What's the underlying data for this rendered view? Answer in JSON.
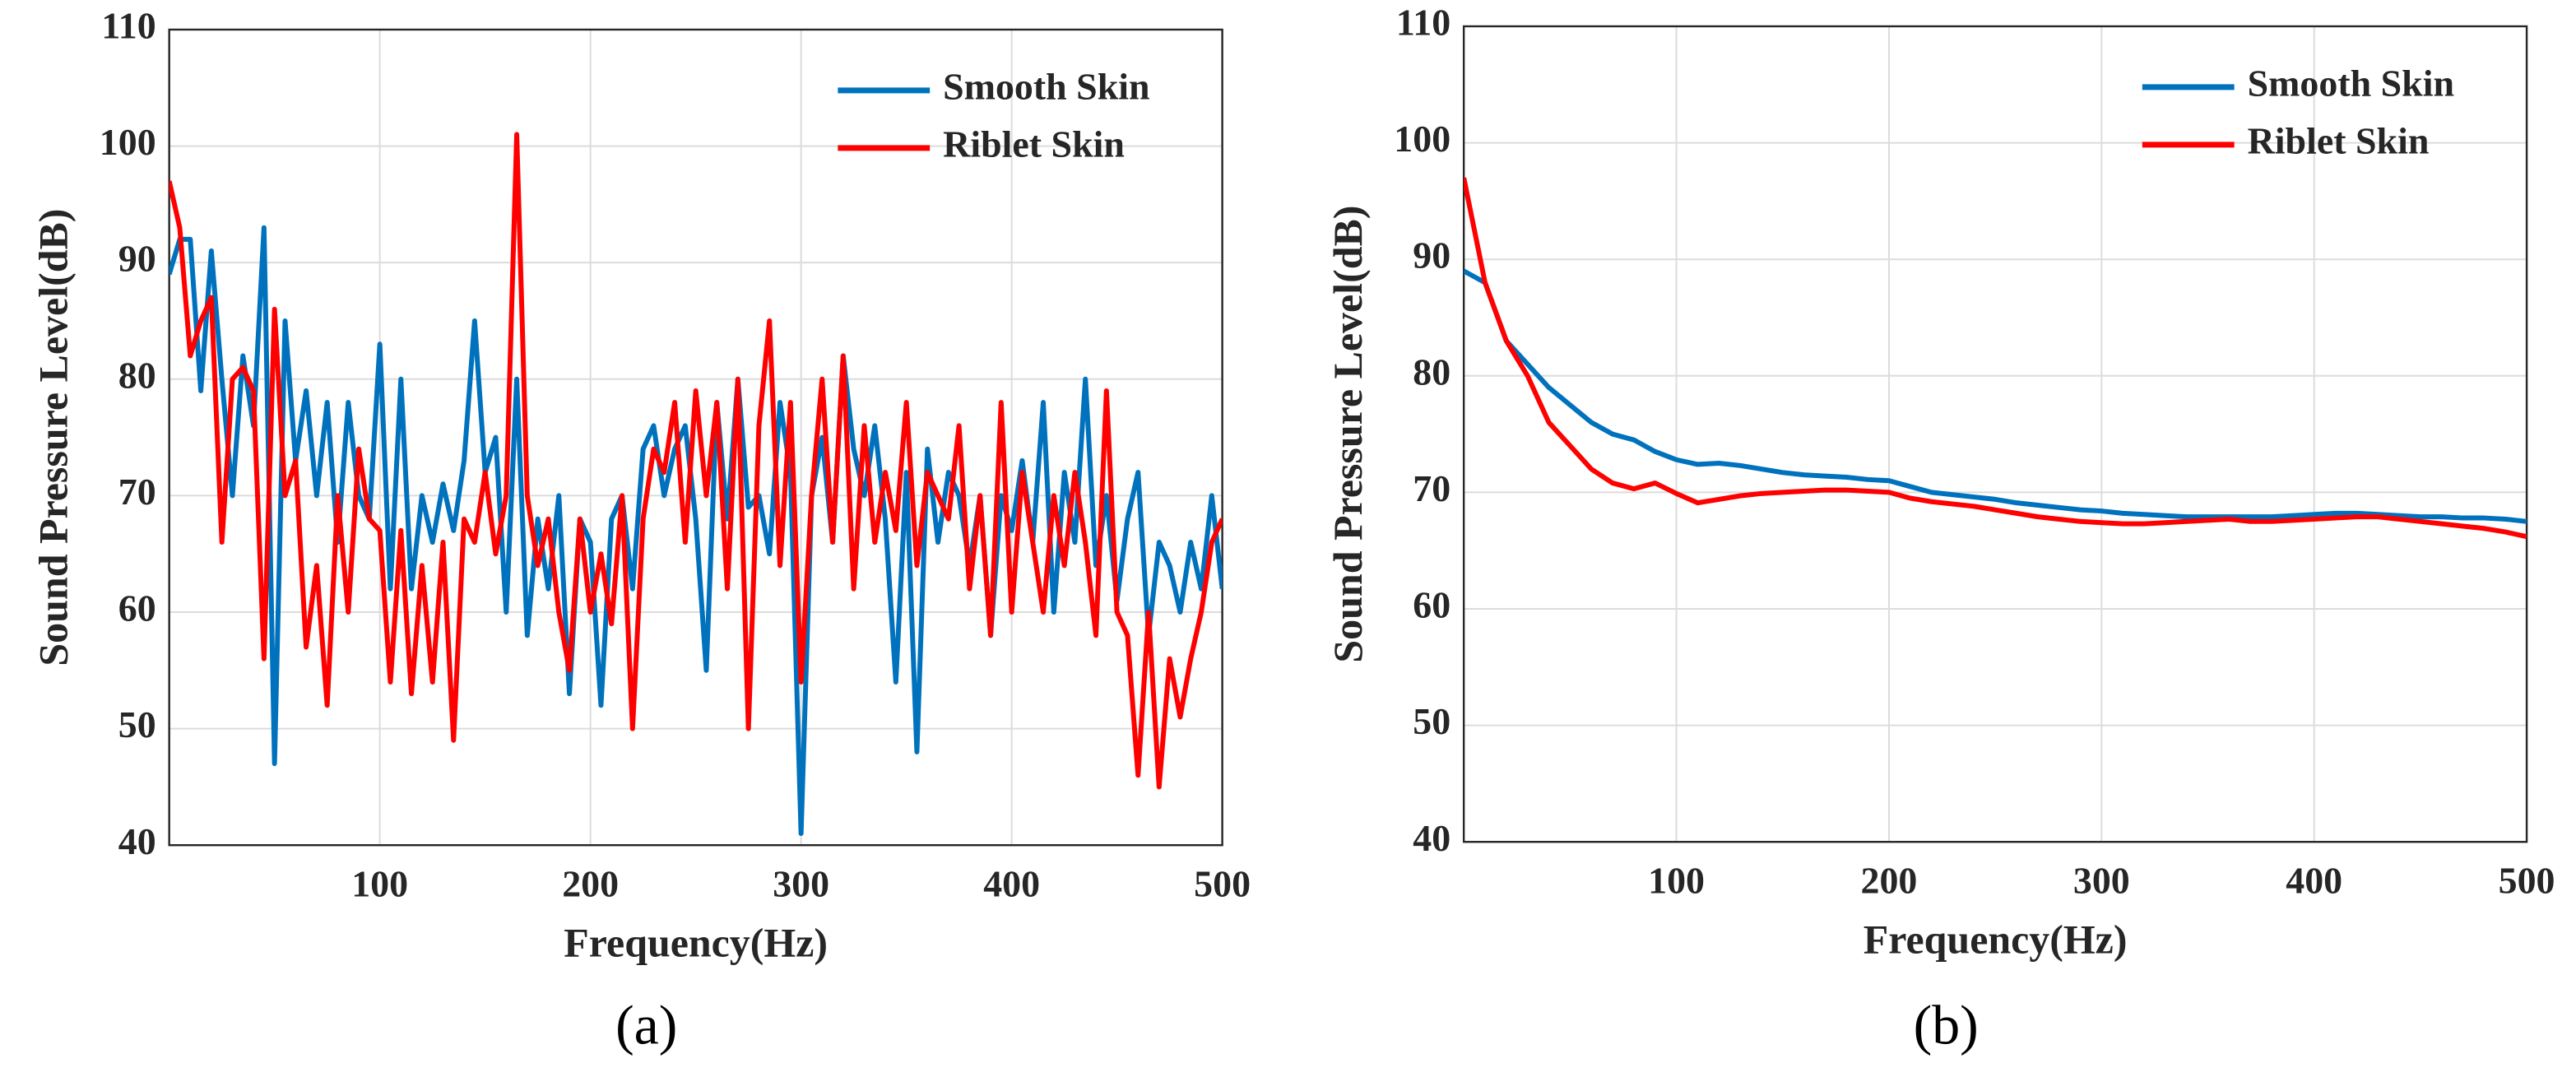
{
  "chart_data": [
    {
      "type": "line",
      "label": "(a)",
      "xlabel": "Frequency(Hz)",
      "ylabel": "Sound Pressure Level(dB)",
      "xlim": [
        0,
        500
      ],
      "ylim": [
        40,
        110
      ],
      "xticks": [
        100,
        200,
        300,
        400,
        500
      ],
      "yticks": [
        40,
        50,
        60,
        70,
        80,
        90,
        100,
        110
      ],
      "grid": true,
      "legend": "upper right",
      "x": [
        0,
        5,
        10,
        15,
        20,
        25,
        30,
        35,
        40,
        45,
        50,
        55,
        60,
        65,
        70,
        75,
        80,
        85,
        90,
        95,
        100,
        105,
        110,
        115,
        120,
        125,
        130,
        135,
        140,
        145,
        150,
        155,
        160,
        165,
        170,
        175,
        180,
        185,
        190,
        195,
        200,
        205,
        210,
        215,
        220,
        225,
        230,
        235,
        240,
        245,
        250,
        255,
        260,
        265,
        270,
        275,
        280,
        285,
        290,
        295,
        300,
        305,
        310,
        315,
        320,
        325,
        330,
        335,
        340,
        345,
        350,
        355,
        360,
        365,
        370,
        375,
        380,
        385,
        390,
        395,
        400,
        405,
        410,
        415,
        420,
        425,
        430,
        435,
        440,
        445,
        450,
        455,
        460,
        465,
        470,
        475,
        480,
        485,
        490,
        495,
        500
      ],
      "series": [
        {
          "name": "Smooth Skin",
          "color": "#0072BD",
          "values": [
            89,
            92,
            92,
            79,
            91,
            80,
            70,
            82,
            76,
            93,
            47,
            85,
            73,
            79,
            70,
            78,
            66,
            78,
            70,
            68,
            83,
            62,
            80,
            62,
            70,
            66,
            71,
            67,
            73,
            85,
            72,
            75,
            60,
            80,
            58,
            68,
            62,
            70,
            53,
            68,
            66,
            52,
            68,
            70,
            62,
            74,
            76,
            70,
            74,
            76,
            68,
            55,
            78,
            68,
            80,
            69,
            70,
            65,
            78,
            72,
            41,
            70,
            75,
            66,
            82,
            74,
            70,
            76,
            68,
            54,
            72,
            48,
            74,
            66,
            72,
            70,
            64,
            70,
            58,
            70,
            67,
            73,
            66,
            78,
            60,
            72,
            66,
            80,
            64,
            70,
            61,
            68,
            72,
            58,
            66,
            64,
            60,
            66,
            62,
            70,
            62
          ]
        },
        {
          "name": "Riblet Skin",
          "color": "#FF0000",
          "values": [
            97,
            93,
            82,
            85,
            87,
            66,
            80,
            81,
            79,
            56,
            86,
            70,
            73,
            57,
            64,
            52,
            70,
            60,
            74,
            68,
            67,
            54,
            67,
            53,
            64,
            54,
            66,
            49,
            68,
            66,
            72,
            65,
            70,
            101,
            70,
            64,
            68,
            60,
            55,
            68,
            60,
            65,
            59,
            70,
            50,
            68,
            74,
            72,
            78,
            66,
            79,
            70,
            78,
            62,
            80,
            50,
            76,
            85,
            64,
            78,
            54,
            70,
            80,
            66,
            82,
            62,
            76,
            66,
            72,
            67,
            78,
            64,
            72,
            70,
            68,
            76,
            62,
            70,
            58,
            78,
            60,
            72,
            66,
            60,
            70,
            64,
            72,
            66,
            58,
            79,
            60,
            58,
            46,
            60,
            45,
            56,
            51,
            56,
            60,
            66,
            68
          ]
        }
      ]
    },
    {
      "type": "line",
      "label": "(b)",
      "xlabel": "Frequency(Hz)",
      "ylabel": "Sound Pressure Level(dB)",
      "xlim": [
        0,
        500
      ],
      "ylim": [
        40,
        110
      ],
      "xticks": [
        100,
        200,
        300,
        400,
        500
      ],
      "yticks": [
        40,
        50,
        60,
        70,
        80,
        90,
        100,
        110
      ],
      "grid": true,
      "legend": "upper right",
      "x": [
        0,
        10,
        20,
        30,
        40,
        50,
        60,
        70,
        80,
        90,
        100,
        110,
        120,
        130,
        140,
        150,
        160,
        170,
        180,
        190,
        200,
        210,
        220,
        230,
        240,
        250,
        260,
        270,
        280,
        290,
        300,
        310,
        320,
        330,
        340,
        350,
        360,
        370,
        380,
        390,
        400,
        410,
        420,
        430,
        440,
        450,
        460,
        470,
        480,
        490,
        500
      ],
      "series": [
        {
          "name": "Smooth Skin",
          "color": "#0072BD",
          "values": [
            89,
            88,
            83,
            81,
            79,
            77.5,
            76,
            75,
            74.5,
            73.5,
            72.8,
            72.4,
            72.5,
            72.3,
            72,
            71.7,
            71.5,
            71.4,
            71.3,
            71.1,
            71,
            70.5,
            70,
            69.8,
            69.6,
            69.4,
            69.1,
            68.9,
            68.7,
            68.5,
            68.4,
            68.2,
            68.1,
            68,
            67.9,
            67.9,
            67.9,
            67.9,
            67.9,
            68,
            68.1,
            68.2,
            68.2,
            68.1,
            68,
            67.9,
            67.9,
            67.8,
            67.8,
            67.7,
            67.5
          ]
        },
        {
          "name": "Riblet Skin",
          "color": "#FF0000",
          "values": [
            97,
            88,
            83,
            80,
            76,
            74,
            72,
            70.8,
            70.3,
            70.8,
            69.9,
            69.1,
            69.4,
            69.7,
            69.9,
            70,
            70.1,
            70.2,
            70.2,
            70.1,
            70,
            69.5,
            69.2,
            69,
            68.8,
            68.5,
            68.2,
            67.9,
            67.7,
            67.5,
            67.4,
            67.3,
            67.3,
            67.4,
            67.5,
            67.6,
            67.7,
            67.5,
            67.5,
            67.6,
            67.7,
            67.8,
            67.9,
            67.9,
            67.7,
            67.5,
            67.3,
            67.1,
            66.9,
            66.6,
            66.2
          ]
        }
      ]
    }
  ]
}
